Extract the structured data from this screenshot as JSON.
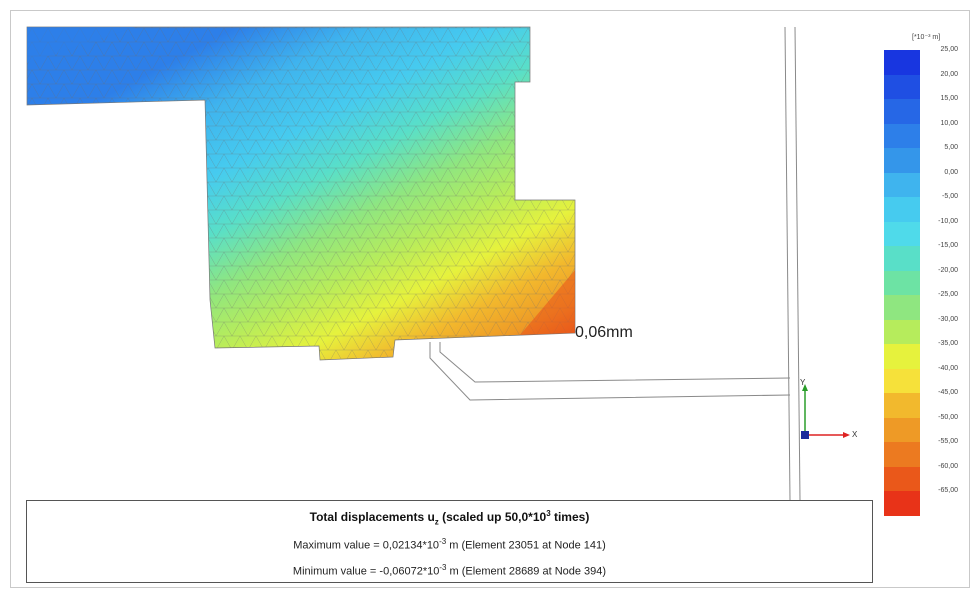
{
  "plot": {
    "annotation": "0,06mm",
    "axis_y_label": "Y",
    "axis_x_label": "X"
  },
  "legend": {
    "unit_label": "[*10⁻³ m]",
    "ticks": [
      "25,00",
      "20,00",
      "15,00",
      "10,00",
      "5,00",
      "0,00",
      "-5,00",
      "-10,00",
      "-15,00",
      "-20,00",
      "-25,00",
      "-30,00",
      "-35,00",
      "-40,00",
      "-45,00",
      "-50,00",
      "-55,00",
      "-60,00",
      "-65,00"
    ],
    "colors": [
      "#1836e0",
      "#1f4fe3",
      "#2667e6",
      "#2d7fe9",
      "#3496ea",
      "#3fb4ee",
      "#46cbef",
      "#4fdaea",
      "#59dfc8",
      "#6de3a4",
      "#8fe680",
      "#b6ec5c",
      "#e6f23d",
      "#f6e13a",
      "#f2b92d",
      "#ee9a26",
      "#ec7a20",
      "#ea581a",
      "#e83318"
    ]
  },
  "info": {
    "title_pre": "Total displacements u",
    "title_sub": "z",
    "title_mid": " (scaled up 50,0*10",
    "title_sup": "3",
    "title_post": " times)",
    "max_pre": "Maximum value = 0,02134*10",
    "max_sup": "-3",
    "max_post": " m (Element 23051 at Node 141)",
    "min_pre": "Minimum value = -0,06072*10",
    "min_sup": "-3",
    "min_post": " m (Element 28689 at Node 394)"
  }
}
